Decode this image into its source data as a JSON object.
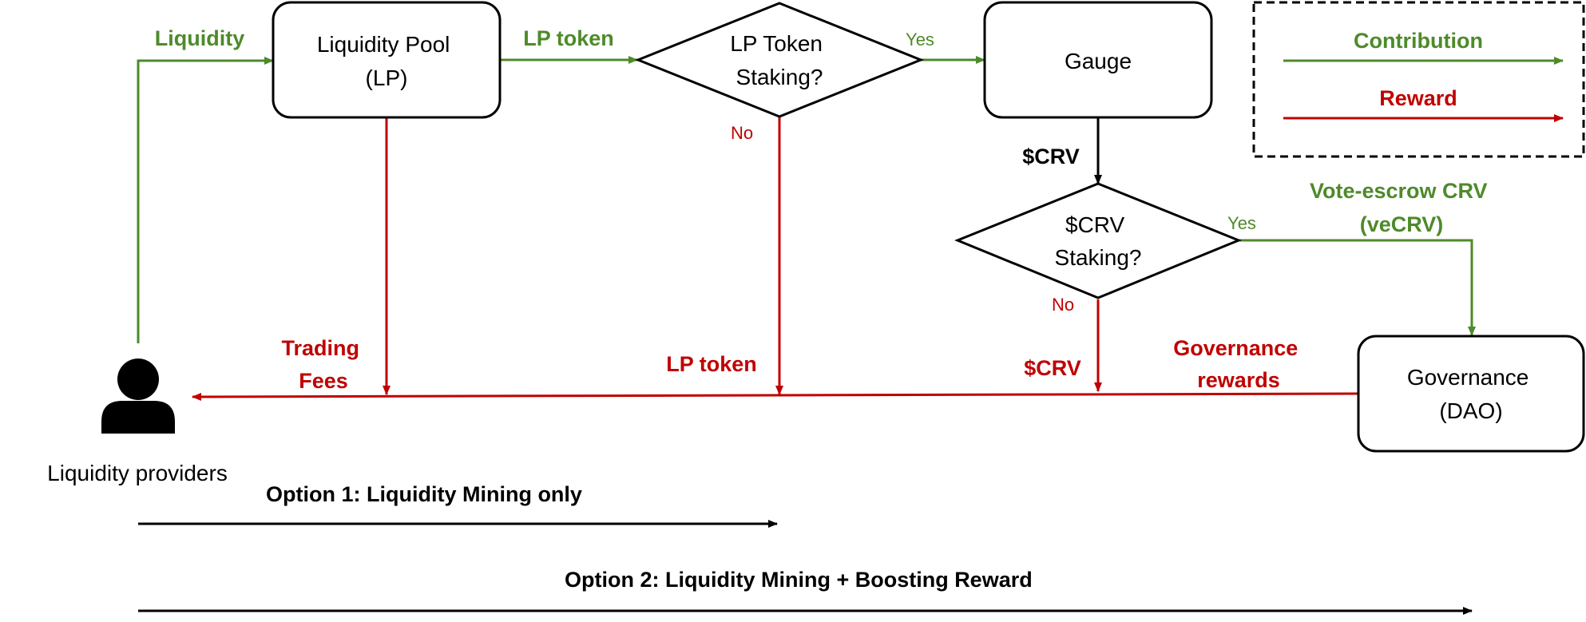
{
  "colors": {
    "contribution": "#4e8a2a",
    "reward": "#c00000",
    "neutral": "#000000"
  },
  "legend": {
    "contribution": "Contribution",
    "reward": "Reward"
  },
  "nodes": {
    "liquidity_pool": [
      "Liquidity Pool",
      "(LP)"
    ],
    "lp_staking": [
      "LP Token",
      "Staking?"
    ],
    "gauge": "Gauge",
    "crv_staking": [
      "$CRV",
      "Staking?"
    ],
    "governance": [
      "Governance",
      "(DAO)"
    ],
    "providers": "Liquidity providers",
    "providers_icon": "person-icon"
  },
  "edges": {
    "liquidity": "Liquidity",
    "lp_token_out": "LP token",
    "lp_yes": "Yes",
    "lp_no": "No",
    "crv_from_gauge": "$CRV",
    "crv_yes": "Yes",
    "crv_no": "No",
    "vecrv": [
      "Vote-escrow CRV",
      "(veCRV)"
    ],
    "trading_fees": [
      "Trading",
      "Fees"
    ],
    "lp_token_return": "LP token",
    "crv_return": "$CRV",
    "governance_rewards": [
      "Governance",
      "rewards"
    ]
  },
  "options": {
    "option1": "Option 1: Liquidity Mining only",
    "option2": "Option 2: Liquidity Mining + Boosting Reward"
  }
}
